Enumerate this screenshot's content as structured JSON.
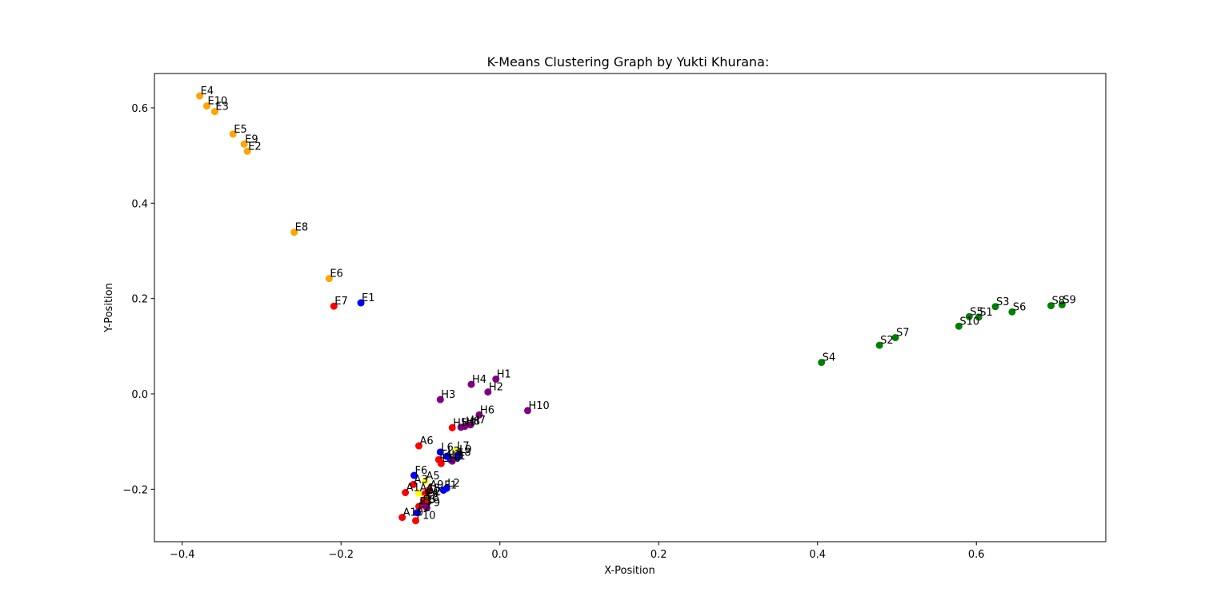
{
  "chart_data": {
    "type": "scatter",
    "title": "K-Means Clustering Graph by Yukti Khurana:",
    "xlabel": "X-Position",
    "ylabel": "Y-Position",
    "xlim": [
      -0.435,
      0.763
    ],
    "ylim": [
      -0.31,
      0.672
    ],
    "xticks": [
      -0.4,
      -0.2,
      0.0,
      0.2,
      0.4,
      0.6
    ],
    "xtick_labels": [
      "−0.4",
      "−0.2",
      "0.0",
      "0.2",
      "0.4",
      "0.6"
    ],
    "yticks": [
      -0.2,
      0.0,
      0.2,
      0.4,
      0.6
    ],
    "ytick_labels": [
      "−0.2",
      "0.0",
      "0.2",
      "0.4",
      "0.6"
    ],
    "grid": false,
    "legend": false,
    "colors": {
      "orange": "#ffa500",
      "green": "#008000",
      "purple": "#800080",
      "red": "#ff0000",
      "blue": "#0000ff",
      "yellow": "#ffff00"
    },
    "points": [
      {
        "label": "E4",
        "x": -0.378,
        "y": 0.625,
        "color": "orange"
      },
      {
        "label": "E10",
        "x": -0.369,
        "y": 0.604,
        "color": "orange"
      },
      {
        "label": "E3",
        "x": -0.359,
        "y": 0.592,
        "color": "orange"
      },
      {
        "label": "E5",
        "x": -0.336,
        "y": 0.545,
        "color": "orange"
      },
      {
        "label": "E9",
        "x": -0.322,
        "y": 0.524,
        "color": "orange"
      },
      {
        "label": "E2",
        "x": -0.318,
        "y": 0.509,
        "color": "orange"
      },
      {
        "label": "E8",
        "x": -0.259,
        "y": 0.339,
        "color": "orange"
      },
      {
        "label": "E6",
        "x": -0.215,
        "y": 0.242,
        "color": "orange"
      },
      {
        "label": "E1",
        "x": -0.175,
        "y": 0.191,
        "color": "blue"
      },
      {
        "label": "E7",
        "x": -0.209,
        "y": 0.184,
        "color": "red"
      },
      {
        "label": "S3",
        "x": 0.624,
        "y": 0.183,
        "color": "green"
      },
      {
        "label": "S6",
        "x": 0.645,
        "y": 0.172,
        "color": "green"
      },
      {
        "label": "S8",
        "x": 0.694,
        "y": 0.185,
        "color": "green"
      },
      {
        "label": "S9",
        "x": 0.708,
        "y": 0.187,
        "color": "green"
      },
      {
        "label": "S5",
        "x": 0.591,
        "y": 0.162,
        "color": "green"
      },
      {
        "label": "S1",
        "x": 0.603,
        "y": 0.161,
        "color": "green"
      },
      {
        "label": "S10",
        "x": 0.578,
        "y": 0.142,
        "color": "green"
      },
      {
        "label": "S7",
        "x": 0.498,
        "y": 0.118,
        "color": "green"
      },
      {
        "label": "S2",
        "x": 0.478,
        "y": 0.102,
        "color": "green"
      },
      {
        "label": "S4",
        "x": 0.405,
        "y": 0.066,
        "color": "green"
      },
      {
        "label": "H1",
        "x": -0.005,
        "y": 0.031,
        "color": "purple"
      },
      {
        "label": "H4",
        "x": -0.036,
        "y": 0.02,
        "color": "purple"
      },
      {
        "label": "H2",
        "x": -0.015,
        "y": 0.004,
        "color": "purple"
      },
      {
        "label": "H3",
        "x": -0.075,
        "y": -0.012,
        "color": "purple"
      },
      {
        "label": "H10",
        "x": 0.035,
        "y": -0.035,
        "color": "purple"
      },
      {
        "label": "H6",
        "x": -0.026,
        "y": -0.044,
        "color": "purple"
      },
      {
        "label": "H7",
        "x": -0.037,
        "y": -0.065,
        "color": "purple"
      },
      {
        "label": "H8",
        "x": -0.044,
        "y": -0.068,
        "color": "purple"
      },
      {
        "label": "H9",
        "x": -0.049,
        "y": -0.07,
        "color": "purple"
      },
      {
        "label": "H5",
        "x": -0.06,
        "y": -0.071,
        "color": "red"
      },
      {
        "label": "A6",
        "x": -0.102,
        "y": -0.109,
        "color": "red"
      },
      {
        "label": "L6",
        "x": -0.075,
        "y": -0.122,
        "color": "blue"
      },
      {
        "label": "L7",
        "x": -0.055,
        "y": -0.12,
        "color": "yellow"
      },
      {
        "label": "L9",
        "x": -0.052,
        "y": -0.127,
        "color": "blue"
      },
      {
        "label": "L8",
        "x": -0.053,
        "y": -0.133,
        "color": "blue"
      },
      {
        "label": "L3",
        "x": -0.067,
        "y": -0.131,
        "color": "blue"
      },
      {
        "label": "L5",
        "x": -0.062,
        "y": -0.138,
        "color": "blue"
      },
      {
        "label": "L4",
        "x": -0.077,
        "y": -0.138,
        "color": "red"
      },
      {
        "label": "L10",
        "x": -0.074,
        "y": -0.146,
        "color": "red"
      },
      {
        "label": "L1",
        "x": -0.06,
        "y": -0.141,
        "color": "purple"
      },
      {
        "label": "F6",
        "x": -0.108,
        "y": -0.171,
        "color": "blue"
      },
      {
        "label": "A5",
        "x": -0.094,
        "y": -0.183,
        "color": "yellow"
      },
      {
        "label": "A3",
        "x": -0.109,
        "y": -0.19,
        "color": "red"
      },
      {
        "label": "A1",
        "x": -0.119,
        "y": -0.207,
        "color": "red"
      },
      {
        "label": "A4",
        "x": -0.102,
        "y": -0.208,
        "color": "yellow"
      },
      {
        "label": "A8",
        "x": -0.094,
        "y": -0.209,
        "color": "red"
      },
      {
        "label": "A9",
        "x": -0.089,
        "y": -0.201,
        "color": "red"
      },
      {
        "label": "A2",
        "x": -0.092,
        "y": -0.215,
        "color": "red"
      },
      {
        "label": "L2",
        "x": -0.067,
        "y": -0.198,
        "color": "blue"
      },
      {
        "label": "F1",
        "x": -0.071,
        "y": -0.202,
        "color": "blue"
      },
      {
        "label": "F4",
        "x": -0.094,
        "y": -0.219,
        "color": "yellow"
      },
      {
        "label": "F7",
        "x": -0.096,
        "y": -0.223,
        "color": "red"
      },
      {
        "label": "F8",
        "x": -0.093,
        "y": -0.228,
        "color": "red"
      },
      {
        "label": "F5",
        "x": -0.098,
        "y": -0.233,
        "color": "purple"
      },
      {
        "label": "F3",
        "x": -0.102,
        "y": -0.236,
        "color": "red"
      },
      {
        "label": "F9",
        "x": -0.092,
        "y": -0.239,
        "color": "purple"
      },
      {
        "label": "A10",
        "x": -0.123,
        "y": -0.259,
        "color": "red"
      },
      {
        "label": "F2",
        "x": -0.104,
        "y": -0.249,
        "color": "blue"
      },
      {
        "label": "F10",
        "x": -0.106,
        "y": -0.266,
        "color": "red"
      }
    ]
  }
}
